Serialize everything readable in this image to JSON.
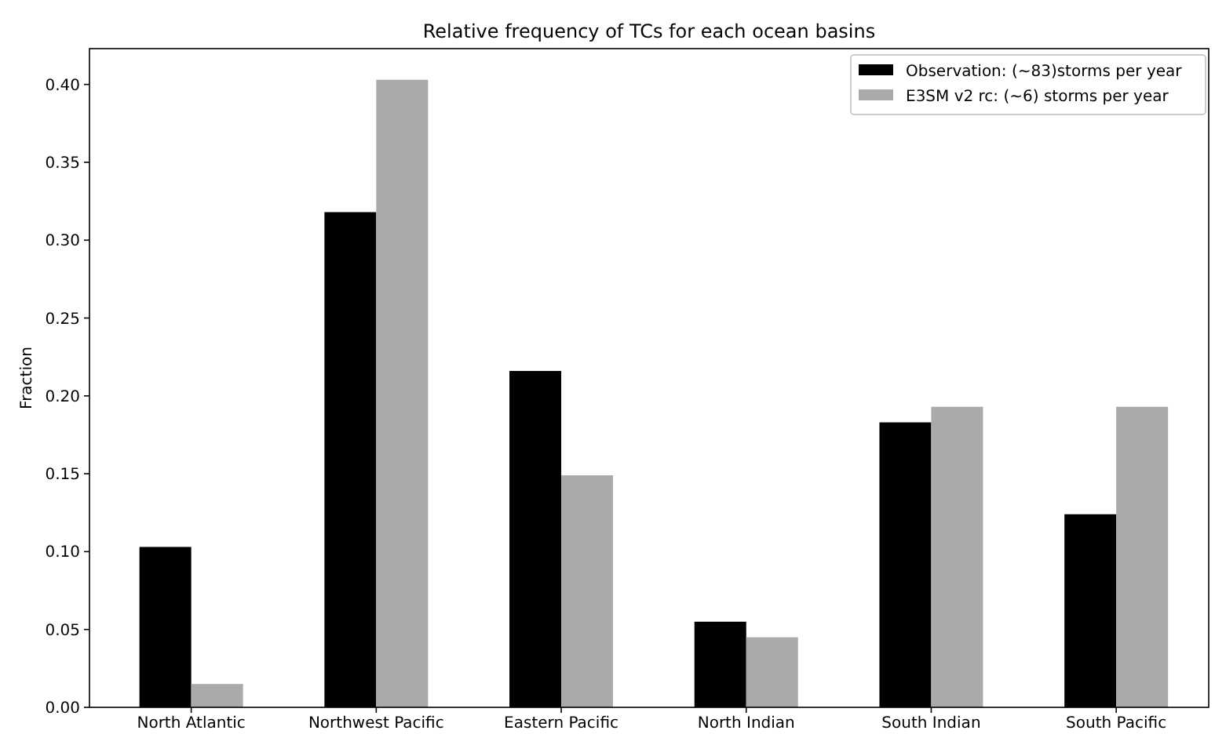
{
  "chart_data": {
    "type": "bar",
    "title": "Relative frequency of TCs for each ocean basins",
    "ylabel": "Fraction",
    "categories": [
      "North Atlantic",
      "Northwest Pacific",
      "Eastern Pacific",
      "North Indian",
      "South Indian",
      "South Pacific"
    ],
    "series": [
      {
        "name": "Observation: (~83)storms per year",
        "color": "#000000",
        "values": [
          0.103,
          0.318,
          0.216,
          0.055,
          0.183,
          0.124
        ]
      },
      {
        "name": "E3SM v2 rc: (~6) storms per year",
        "color": "#aaaaaa",
        "values": [
          0.015,
          0.403,
          0.149,
          0.045,
          0.193,
          0.193
        ]
      }
    ],
    "ylim": [
      0,
      0.423
    ],
    "yticks": [
      {
        "value": 0,
        "label": "0.00"
      },
      {
        "value": 0.05,
        "label": "0.05"
      },
      {
        "value": 0.1,
        "label": "0.10"
      },
      {
        "value": 0.15,
        "label": "0.15"
      },
      {
        "value": 0.2,
        "label": "0.20"
      },
      {
        "value": 0.25,
        "label": "0.25"
      },
      {
        "value": 0.3,
        "label": "0.30"
      },
      {
        "value": 0.35,
        "label": "0.35"
      },
      {
        "value": 0.4,
        "label": "0.40"
      }
    ],
    "grid": false,
    "legend": "top right"
  }
}
